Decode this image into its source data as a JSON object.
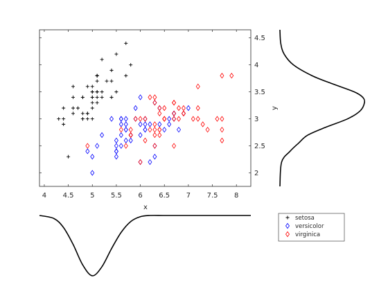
{
  "chart_data": [
    {
      "type": "scatter",
      "xlabel": "x",
      "ylabel": "y",
      "xlim": [
        3.9,
        8.3
      ],
      "ylim": [
        1.75,
        4.65
      ],
      "xticks": [
        "4",
        "4.5",
        "5",
        "5.5",
        "6",
        "6.5",
        "7",
        "7.5",
        "8"
      ],
      "yticks": [
        "2",
        "2.5",
        "3",
        "3.5",
        "4",
        "4.5"
      ],
      "y_axis_side": "right",
      "grid": false,
      "series": [
        {
          "name": "setosa",
          "marker": "plus",
          "color": "#000000",
          "points": [
            [
              5.1,
              3.5
            ],
            [
              4.9,
              3.0
            ],
            [
              4.7,
              3.2
            ],
            [
              4.6,
              3.1
            ],
            [
              5.0,
              3.6
            ],
            [
              5.4,
              3.9
            ],
            [
              4.6,
              3.4
            ],
            [
              5.0,
              3.4
            ],
            [
              4.4,
              2.9
            ],
            [
              4.9,
              3.1
            ],
            [
              5.4,
              3.7
            ],
            [
              4.8,
              3.4
            ],
            [
              4.8,
              3.0
            ],
            [
              4.3,
              3.0
            ],
            [
              5.8,
              4.0
            ],
            [
              5.7,
              4.4
            ],
            [
              5.4,
              3.9
            ],
            [
              5.1,
              3.5
            ],
            [
              5.7,
              3.8
            ],
            [
              5.1,
              3.8
            ],
            [
              5.4,
              3.4
            ],
            [
              5.1,
              3.7
            ],
            [
              4.6,
              3.6
            ],
            [
              5.1,
              3.3
            ],
            [
              4.8,
              3.4
            ],
            [
              5.0,
              3.0
            ],
            [
              5.0,
              3.4
            ],
            [
              5.2,
              3.5
            ],
            [
              5.2,
              3.4
            ],
            [
              4.7,
              3.2
            ],
            [
              4.8,
              3.1
            ],
            [
              5.4,
              3.4
            ],
            [
              5.2,
              4.1
            ],
            [
              5.5,
              4.2
            ],
            [
              4.9,
              3.1
            ],
            [
              5.0,
              3.2
            ],
            [
              5.5,
              3.5
            ],
            [
              4.9,
              3.6
            ],
            [
              4.4,
              3.0
            ],
            [
              5.1,
              3.4
            ],
            [
              5.0,
              3.5
            ],
            [
              4.5,
              2.3
            ],
            [
              4.4,
              3.2
            ],
            [
              5.0,
              3.5
            ],
            [
              5.1,
              3.8
            ],
            [
              4.8,
              3.0
            ],
            [
              5.1,
              3.8
            ],
            [
              4.6,
              3.2
            ],
            [
              5.3,
              3.7
            ],
            [
              5.0,
              3.3
            ]
          ]
        },
        {
          "name": "versicolor",
          "marker": "diamond",
          "color": "#0000ff",
          "points": [
            [
              7.0,
              3.2
            ],
            [
              6.4,
              3.2
            ],
            [
              6.9,
              3.1
            ],
            [
              5.5,
              2.3
            ],
            [
              6.5,
              2.8
            ],
            [
              5.7,
              2.8
            ],
            [
              6.3,
              3.3
            ],
            [
              4.9,
              2.4
            ],
            [
              6.6,
              2.9
            ],
            [
              5.2,
              2.7
            ],
            [
              5.0,
              2.0
            ],
            [
              5.9,
              3.0
            ],
            [
              6.0,
              2.2
            ],
            [
              6.1,
              2.9
            ],
            [
              5.6,
              2.9
            ],
            [
              6.7,
              3.1
            ],
            [
              5.6,
              3.0
            ],
            [
              5.8,
              2.7
            ],
            [
              6.2,
              2.2
            ],
            [
              5.6,
              2.5
            ],
            [
              5.9,
              3.2
            ],
            [
              6.1,
              2.8
            ],
            [
              6.3,
              2.5
            ],
            [
              6.1,
              2.8
            ],
            [
              6.4,
              2.9
            ],
            [
              6.6,
              3.0
            ],
            [
              6.8,
              2.8
            ],
            [
              6.7,
              3.0
            ],
            [
              6.0,
              2.9
            ],
            [
              5.7,
              2.6
            ],
            [
              5.5,
              2.4
            ],
            [
              5.5,
              2.4
            ],
            [
              5.8,
              2.7
            ],
            [
              6.0,
              2.7
            ],
            [
              5.4,
              3.0
            ],
            [
              6.0,
              3.4
            ],
            [
              6.7,
              3.1
            ],
            [
              6.3,
              2.3
            ],
            [
              5.6,
              3.0
            ],
            [
              5.5,
              2.5
            ],
            [
              5.5,
              2.6
            ],
            [
              6.1,
              3.0
            ],
            [
              5.8,
              2.6
            ],
            [
              5.0,
              2.3
            ],
            [
              5.6,
              2.7
            ],
            [
              5.7,
              3.0
            ],
            [
              5.7,
              2.9
            ],
            [
              6.2,
              2.9
            ],
            [
              5.1,
              2.5
            ],
            [
              5.7,
              2.8
            ]
          ]
        },
        {
          "name": "virginica",
          "marker": "diamond",
          "color": "#ff0000",
          "points": [
            [
              6.3,
              3.3
            ],
            [
              5.8,
              2.7
            ],
            [
              7.1,
              3.0
            ],
            [
              6.3,
              2.9
            ],
            [
              6.5,
              3.0
            ],
            [
              7.6,
              3.0
            ],
            [
              4.9,
              2.5
            ],
            [
              7.3,
              2.9
            ],
            [
              6.7,
              2.5
            ],
            [
              7.2,
              3.6
            ],
            [
              6.5,
              3.2
            ],
            [
              6.4,
              2.7
            ],
            [
              6.8,
              3.0
            ],
            [
              5.7,
              2.5
            ],
            [
              5.8,
              2.8
            ],
            [
              6.4,
              3.2
            ],
            [
              6.5,
              3.0
            ],
            [
              7.7,
              3.8
            ],
            [
              7.7,
              2.6
            ],
            [
              6.0,
              2.2
            ],
            [
              6.9,
              3.2
            ],
            [
              5.6,
              2.8
            ],
            [
              7.7,
              2.8
            ],
            [
              6.3,
              2.7
            ],
            [
              6.7,
              3.3
            ],
            [
              7.2,
              3.2
            ],
            [
              6.2,
              2.8
            ],
            [
              6.1,
              3.0
            ],
            [
              6.4,
              2.8
            ],
            [
              7.2,
              3.0
            ],
            [
              7.4,
              2.8
            ],
            [
              7.9,
              3.8
            ],
            [
              6.4,
              2.8
            ],
            [
              6.3,
              2.8
            ],
            [
              6.1,
              2.6
            ],
            [
              7.7,
              3.0
            ],
            [
              6.3,
              3.4
            ],
            [
              6.4,
              3.1
            ],
            [
              6.0,
              3.0
            ],
            [
              6.9,
              3.1
            ],
            [
              6.7,
              3.1
            ],
            [
              6.9,
              3.1
            ],
            [
              5.8,
              2.7
            ],
            [
              6.8,
              3.2
            ],
            [
              6.7,
              3.3
            ],
            [
              6.7,
              3.0
            ],
            [
              6.3,
              2.5
            ],
            [
              6.5,
              3.0
            ],
            [
              6.2,
              3.4
            ],
            [
              5.9,
              3.0
            ]
          ]
        }
      ]
    },
    {
      "type": "line",
      "description_source": "marginal density of y (right of scatter)",
      "series": [
        {
          "name": "",
          "color": "#000000",
          "x": [
            1.75,
            2.2,
            2.4,
            2.55,
            2.7,
            2.85,
            3.0,
            3.15,
            3.3,
            3.4,
            3.5,
            3.65,
            3.8,
            4.0,
            4.2,
            4.4,
            4.65
          ],
          "values": [
            0.0,
            0.02,
            0.12,
            0.22,
            0.33,
            0.55,
            0.8,
            0.95,
            1.0,
            0.98,
            0.88,
            0.62,
            0.38,
            0.16,
            0.05,
            0.01,
            0.0
          ]
        }
      ]
    },
    {
      "type": "line",
      "description_source": "marginal density of x (below scatter), drawn downward",
      "series": [
        {
          "name": "",
          "color": "#000000",
          "x": [
            3.9,
            4.2,
            4.4,
            4.6,
            4.8,
            5.0,
            5.2,
            5.4,
            5.6,
            5.8,
            6.0,
            6.2,
            6.5,
            7.0,
            8.3
          ],
          "values": [
            0.0,
            0.05,
            0.2,
            0.48,
            0.82,
            1.0,
            0.85,
            0.55,
            0.28,
            0.1,
            0.02,
            0.0,
            0.0,
            0.0,
            0.0
          ]
        }
      ]
    }
  ],
  "legend": {
    "entries": [
      {
        "label": "setosa",
        "marker": "plus",
        "color": "#000000"
      },
      {
        "label": "versicolor",
        "marker": "diamond",
        "color": "#0000ff"
      },
      {
        "label": "virginica",
        "marker": "diamond",
        "color": "#ff0000"
      }
    ]
  }
}
